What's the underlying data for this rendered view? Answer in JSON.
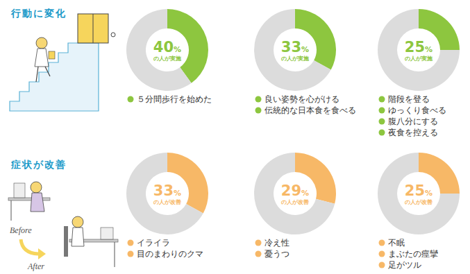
{
  "sections": [
    {
      "title": "行動に変化"
    },
    {
      "title": "症状が改善",
      "labels": [
        "Before",
        "After"
      ]
    }
  ],
  "chart_data": [
    {
      "type": "donut",
      "subtitle": "の人が実施",
      "values": [
        40,
        60
      ],
      "value_labels": [
        "40%",
        null
      ],
      "colors": [
        "#8dc63f",
        "#dcdcdc"
      ],
      "data_labels": true,
      "notes": [
        "５分間歩行を始めた"
      ]
    },
    {
      "type": "donut",
      "subtitle": "の人が実施",
      "values": [
        33,
        67
      ],
      "value_labels": [
        "33%",
        null
      ],
      "colors": [
        "#8dc63f",
        "#dcdcdc"
      ],
      "data_labels": true,
      "notes": [
        "良い姿勢を心がける",
        "伝統的な日本食を食べる"
      ]
    },
    {
      "type": "donut",
      "subtitle": "の人が実施",
      "values": [
        25,
        75
      ],
      "value_labels": [
        "25%",
        null
      ],
      "colors": [
        "#8dc63f",
        "#dcdcdc"
      ],
      "data_labels": true,
      "notes": [
        "階段を登る",
        "ゆっくり食べる",
        "腹八分にする",
        "夜食を控える"
      ]
    },
    {
      "type": "donut",
      "subtitle": "の人が改善",
      "values": [
        33,
        67
      ],
      "value_labels": [
        "33%",
        null
      ],
      "colors": [
        "#f7b867",
        "#dcdcdc"
      ],
      "data_labels": true,
      "notes": [
        "イライラ",
        "目のまわりのクマ"
      ]
    },
    {
      "type": "donut",
      "subtitle": "の人が改善",
      "values": [
        29,
        71
      ],
      "value_labels": [
        "29%",
        null
      ],
      "colors": [
        "#f7b867",
        "#dcdcdc"
      ],
      "data_labels": true,
      "notes": [
        "冷え性",
        "憂うつ"
      ]
    },
    {
      "type": "donut",
      "subtitle": "の人が改善",
      "values": [
        25,
        75
      ],
      "value_labels": [
        "25%",
        null
      ],
      "colors": [
        "#f7b867",
        "#dcdcdc"
      ],
      "data_labels": true,
      "notes": [
        "不眠",
        "まぶたの痙攣",
        "足がツル"
      ]
    }
  ]
}
